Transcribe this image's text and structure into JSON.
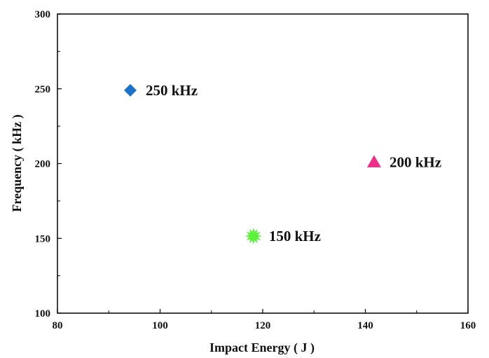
{
  "chart_data": {
    "type": "scatter",
    "title": "",
    "xlabel": "Impact Energy ( J )",
    "ylabel": "Frequency ( kHz )",
    "xlim": [
      80,
      160
    ],
    "ylim": [
      100,
      300
    ],
    "x_ticks": [
      80,
      100,
      120,
      140,
      160
    ],
    "y_ticks": [
      100,
      150,
      200,
      250,
      300
    ],
    "grid": false,
    "legend": "none",
    "points": [
      {
        "label": "250 kHz",
        "x": 94.2,
        "y": 249,
        "marker": "diamond",
        "color": "#1a73c9"
      },
      {
        "label": "200 kHz",
        "x": 141.7,
        "y": 201,
        "marker": "triangle",
        "color": "#ee2f8a"
      },
      {
        "label": "150 kHz",
        "x": 118.2,
        "y": 151.5,
        "marker": "star-burst",
        "color": "#5cf23c"
      }
    ]
  }
}
